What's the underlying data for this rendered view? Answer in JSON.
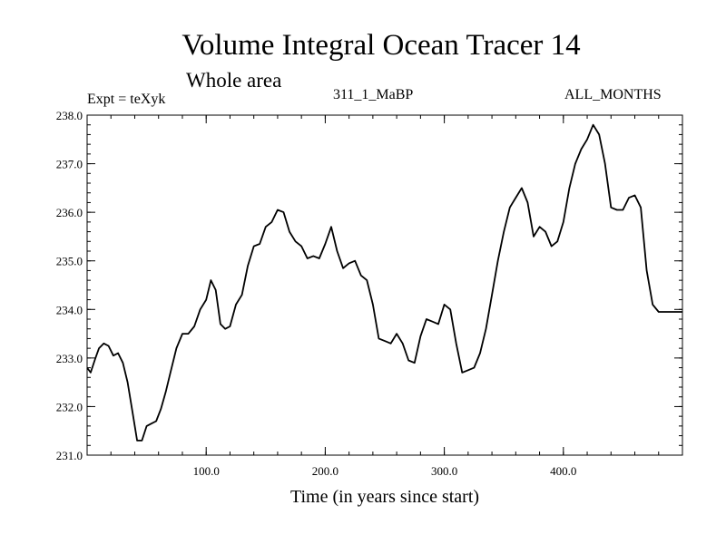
{
  "chart_data": {
    "type": "line",
    "title": "Volume Integral Ocean Tracer 14",
    "subtitle": "Whole area",
    "left_label": "Expt = teXyk",
    "center_label": "311_1_MaBP",
    "right_label": "ALL_MONTHS",
    "xlabel": "Time (in years since start)",
    "ylabel": "",
    "xlim": [
      0,
      500
    ],
    "ylim": [
      231.0,
      238.0
    ],
    "x_ticks": [
      100,
      200,
      300,
      400
    ],
    "x_tick_labels": [
      "100.0",
      "200.0",
      "300.0",
      "400.0"
    ],
    "y_ticks": [
      231,
      232,
      233,
      234,
      235,
      236,
      237,
      238
    ],
    "y_tick_labels": [
      "231.0",
      "232.0",
      "233.0",
      "234.0",
      "235.0",
      "236.0",
      "237.0",
      "238.0"
    ],
    "grid": false,
    "series": [
      {
        "color": "#000000",
        "x": [
          0,
          3,
          7,
          10,
          14,
          18,
          22,
          26,
          30,
          34,
          38,
          42,
          46,
          50,
          54,
          58,
          62,
          66,
          70,
          75,
          80,
          85,
          90,
          95,
          100,
          104,
          108,
          112,
          116,
          120,
          125,
          130,
          135,
          140,
          145,
          150,
          155,
          160,
          165,
          170,
          175,
          180,
          185,
          190,
          195,
          200,
          205,
          210,
          215,
          220,
          225,
          230,
          235,
          240,
          245,
          250,
          255,
          260,
          265,
          270,
          275,
          280,
          285,
          290,
          295,
          300,
          305,
          310,
          315,
          320,
          325,
          330,
          335,
          340,
          345,
          350,
          355,
          360,
          365,
          370,
          375,
          380,
          385,
          390,
          395,
          400,
          405,
          410,
          415,
          420,
          425,
          430,
          435,
          440,
          445,
          450,
          455,
          460,
          465,
          470,
          475,
          480,
          485,
          490,
          495,
          500
        ],
        "y": [
          232.8,
          232.7,
          233.0,
          233.2,
          233.3,
          233.25,
          233.05,
          233.1,
          232.9,
          232.5,
          231.9,
          231.3,
          231.3,
          231.6,
          231.65,
          231.7,
          231.95,
          232.3,
          232.7,
          233.2,
          233.5,
          233.5,
          233.65,
          234.0,
          234.2,
          234.6,
          234.4,
          233.7,
          233.6,
          233.65,
          234.1,
          234.3,
          234.9,
          235.3,
          235.35,
          235.7,
          235.8,
          236.05,
          236.0,
          235.6,
          235.4,
          235.3,
          235.05,
          235.1,
          235.05,
          235.35,
          235.7,
          235.2,
          234.85,
          234.95,
          235.0,
          234.7,
          234.6,
          234.1,
          233.4,
          233.35,
          233.3,
          233.5,
          233.3,
          232.95,
          232.9,
          233.45,
          233.8,
          233.75,
          233.7,
          234.1,
          234.0,
          233.3,
          232.7,
          232.75,
          232.8,
          233.1,
          233.6,
          234.3,
          235.0,
          235.6,
          236.1,
          236.3,
          236.5,
          236.2,
          235.5,
          235.7,
          235.6,
          235.3,
          235.4,
          235.8,
          236.5,
          237.0,
          237.3,
          237.5,
          237.8,
          237.6,
          237.0,
          236.1,
          236.05,
          236.05,
          236.3,
          236.35,
          236.1,
          234.8,
          234.1,
          233.95,
          233.95,
          233.95,
          233.95,
          233.95
        ]
      }
    ]
  }
}
